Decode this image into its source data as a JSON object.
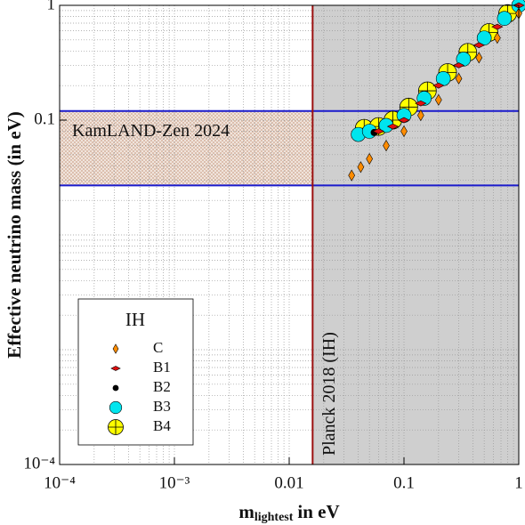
{
  "chart_data": {
    "type": "scatter",
    "xlabel": [
      "m",
      "lightest",
      "in eV"
    ],
    "ylabel": "Effective neutrino mass (in eV)",
    "log_x": true,
    "log_y": true,
    "grid": true,
    "xlim": [
      0.0001,
      1
    ],
    "ylim": [
      0.0001,
      1
    ],
    "xticks": [
      {
        "value": 0.0001,
        "label": "10⁻⁴"
      },
      {
        "value": 0.001,
        "label": "10⁻³"
      },
      0.01,
      0.1,
      1
    ],
    "yticks": [
      {
        "value": 0.0001,
        "label": "10⁻⁴"
      },
      0.1,
      1
    ],
    "bands": [
      {
        "label": "KamLAND-Zen 2024",
        "axis": "y",
        "range": [
          0.027,
          0.12
        ],
        "color": "#1a1acc"
      },
      {
        "label": "Planck 2018 (IH)",
        "axis": "x",
        "from": 0.016,
        "color": "#9b1010"
      }
    ],
    "legend_title": "IH",
    "legend": "lower left",
    "series": [
      {
        "name": "C",
        "color": "#ff8c00",
        "marker": "diamond",
        "x": [
          0.035,
          0.042,
          0.05,
          0.07,
          0.1,
          0.14,
          0.2,
          0.3,
          0.45,
          0.65,
          1
        ],
        "values": [
          0.033,
          0.039,
          0.046,
          0.06,
          0.08,
          0.11,
          0.15,
          0.23,
          0.35,
          0.52,
          0.85
        ]
      },
      {
        "name": "B1",
        "color": "#e01010",
        "marker": "flat-diamond",
        "x": [
          0.06,
          0.08,
          0.1,
          0.14,
          0.2,
          0.3,
          0.45,
          0.65,
          1
        ],
        "values": [
          0.08,
          0.088,
          0.1,
          0.14,
          0.2,
          0.3,
          0.45,
          0.65,
          1
        ]
      },
      {
        "name": "B2",
        "color": "#000000",
        "marker": "circle",
        "x": [
          0.055
        ],
        "values": [
          0.078
        ]
      },
      {
        "name": "B3",
        "color": "#00e5ee",
        "marker": "big-circle",
        "x": [
          0.04,
          0.05,
          0.07,
          0.1,
          0.15,
          0.22,
          0.33,
          0.5,
          0.75,
          1
        ],
        "values": [
          0.075,
          0.08,
          0.09,
          0.11,
          0.155,
          0.23,
          0.34,
          0.52,
          0.77,
          1
        ]
      },
      {
        "name": "B4",
        "color": "#ffff00",
        "marker": "cross-circle",
        "x": [
          0.045,
          0.06,
          0.08,
          0.11,
          0.16,
          0.24,
          0.36,
          0.55,
          0.8
        ],
        "values": [
          0.085,
          0.088,
          0.1,
          0.13,
          0.18,
          0.26,
          0.39,
          0.58,
          0.85
        ]
      }
    ]
  }
}
